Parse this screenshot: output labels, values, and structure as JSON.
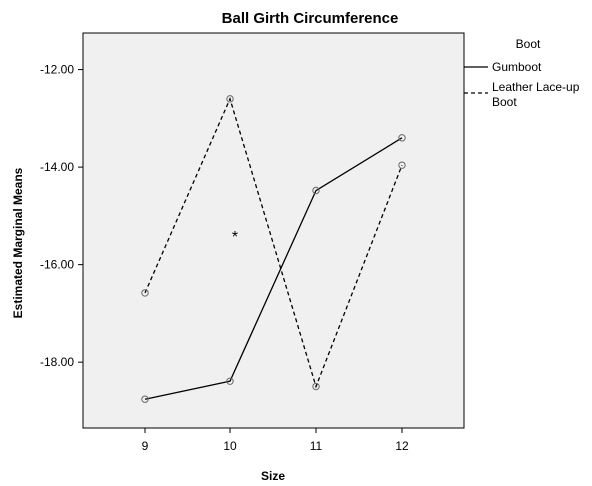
{
  "chart_data": {
    "type": "line",
    "title": "Ball Girth Circumference",
    "xlabel": "Size",
    "ylabel": "Estimated Marginal Means",
    "categories": [
      "9",
      "10",
      "11",
      "12"
    ],
    "yticks": [
      "-12.00",
      "-14.00",
      "-16.00",
      "-18.00"
    ],
    "ylim": [
      -19.35,
      -11.25
    ],
    "legend": {
      "title": "Boot",
      "placement": "right"
    },
    "series": [
      {
        "name": "Gumboot",
        "style": "solid",
        "color": "#000000",
        "values": [
          -18.76,
          -18.39,
          -14.48,
          -13.4
        ]
      },
      {
        "name_lines": [
          "Leather Lace-up",
          "Boot"
        ],
        "name": "Leather Lace-up Boot",
        "style": "dashed",
        "color": "#000000",
        "values": [
          -16.58,
          -12.6,
          -18.5,
          -13.96
        ]
      }
    ],
    "annotation": "*",
    "plot_background": "#f0f0f0"
  }
}
